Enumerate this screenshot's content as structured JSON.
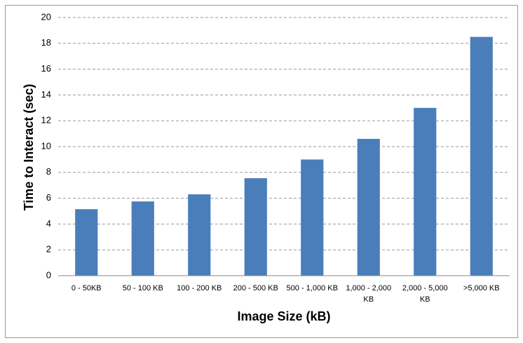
{
  "chart_data": {
    "type": "bar",
    "x_label": "Image Size (kB)",
    "y_label": "Time to Interact (sec)",
    "categories": [
      "0 - 50KB",
      "50 - 100 KB",
      "100 - 200 KB",
      "200 - 500 KB",
      "500 - 1,000 KB",
      "1,000 - 2,000 KB",
      "2,000 - 5,000 KB",
      ">5,000 KB"
    ],
    "values": [
      5.15,
      5.75,
      6.3,
      7.55,
      9.0,
      10.6,
      13.0,
      18.5
    ],
    "color": "#4a7ebb",
    "ylim": [
      0,
      20
    ],
    "yticks": [
      0,
      2,
      4,
      6,
      8,
      10,
      12,
      14,
      16,
      18,
      20
    ],
    "grid": true
  }
}
